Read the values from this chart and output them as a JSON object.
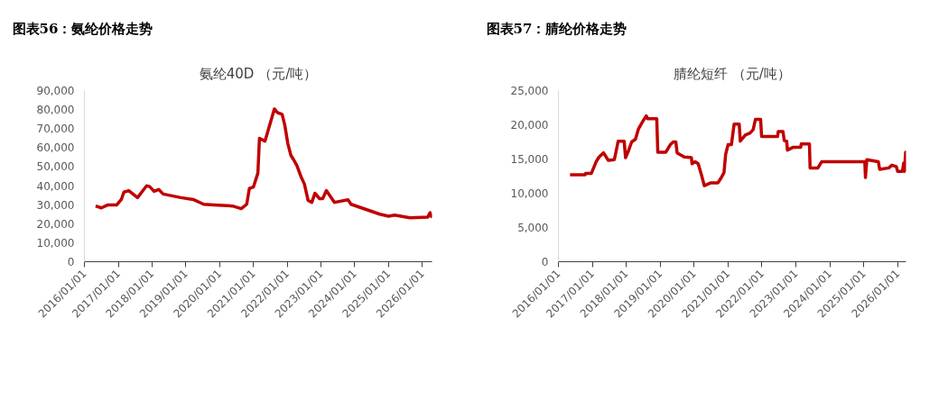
{
  "chart_data": [
    {
      "type": "line",
      "title": "图表56：氨纶价格走势",
      "subtitle": "氨纶40D （元/吨）",
      "x": [
        "2016-05-01",
        "2016-07-02",
        "2016-09-06",
        "2016-12-14",
        "2017-02-03",
        "2017-03-03",
        "2017-04-24",
        "2017-07-28",
        "2017-11-03",
        "2017-12-06",
        "2018-01-23",
        "2018-03-14",
        "2018-05-01",
        "2018-11-10",
        "2019-03-22",
        "2019-07-13",
        "2019-11-03",
        "2020-05-20",
        "2020-08-22",
        "2020-10-20",
        "2020-11-18",
        "2021-01-01",
        "2021-02-18",
        "2021-03-07",
        "2021-05-05",
        "2021-05-27",
        "2021-08-15",
        "2021-09-17",
        "2021-11-07",
        "2021-12-06",
        "2022-01-08",
        "2022-02-10",
        "2022-03-14",
        "2022-04-16",
        "2022-05-30",
        "2022-07-06",
        "2022-08-15",
        "2022-09-24",
        "2022-10-27",
        "2022-12-17",
        "2023-01-19",
        "2023-02-28",
        "2023-05-27",
        "2023-10-20",
        "2023-11-22",
        "2024-03-14",
        "2024-09-28",
        "2025-01-01",
        "2025-03-07",
        "2025-08-19",
        "2026-03-01",
        "2026-03-25",
        "2026-04-15"
      ],
      "series": [
        {
          "color": "#c00000",
          "values": [
            29300,
            28300,
            29800,
            29800,
            32700,
            36600,
            37400,
            33700,
            39900,
            39500,
            37000,
            38000,
            35600,
            33700,
            32700,
            30200,
            29800,
            29300,
            27900,
            30200,
            38500,
            39300,
            46600,
            64900,
            63400,
            66900,
            80300,
            78400,
            77500,
            71700,
            62000,
            55900,
            53400,
            50500,
            44700,
            40800,
            32200,
            31200,
            36000,
            33100,
            33100,
            37400,
            31200,
            32600,
            30200,
            28300,
            25000,
            23900,
            24500,
            23100,
            23500,
            25800,
            23100
          ]
        }
      ],
      "xlim": [
        "2016-01-01",
        "2026-04-15"
      ],
      "xticks": [
        {
          "value": "2016-01-01",
          "label": "2016/01/01"
        },
        {
          "value": "2017-01-01",
          "label": "2017/01/01"
        },
        {
          "value": "2018-01-01",
          "label": "2018/01/01"
        },
        {
          "value": "2019-01-01",
          "label": "2019/01/01"
        },
        {
          "value": "2020-01-01",
          "label": "2020/01/01"
        },
        {
          "value": "2021-01-01",
          "label": "2021/01/01"
        },
        {
          "value": "2022-01-01",
          "label": "2022/01/01"
        },
        {
          "value": "2023-01-01",
          "label": "2023/01/01"
        },
        {
          "value": "2024-01-01",
          "label": "2024/01/01"
        },
        {
          "value": "2025-01-01",
          "label": "2025/01/01"
        },
        {
          "value": "2026-01-01",
          "label": "2026/01/01"
        }
      ],
      "ylim": [
        0,
        90000
      ],
      "yticks": [
        0,
        {
          "value": 10000,
          "label": "10,000"
        },
        {
          "value": 20000,
          "label": "20,000"
        },
        {
          "value": 30000,
          "label": "30,000"
        },
        {
          "value": 40000,
          "label": "40,000"
        },
        {
          "value": 50000,
          "label": "50,000"
        },
        {
          "value": 60000,
          "label": "60,000"
        },
        {
          "value": 70000,
          "label": "70,000"
        },
        {
          "value": 80000,
          "label": "80,000"
        },
        {
          "value": 90000,
          "label": "90,000"
        }
      ],
      "grid": false
    },
    {
      "type": "line",
      "title": "图表57：腈纶价格走势",
      "subtitle": "腈纶短纤 （元/吨）",
      "x": [
        "2016-05-05",
        "2016-10-15",
        "2016-10-20",
        "2016-12-20",
        "2017-01-08",
        "2017-02-10",
        "2017-03-14",
        "2017-05-01",
        "2017-06-21",
        "2017-08-25",
        "2017-09-16",
        "2017-10-05",
        "2017-12-09",
        "2017-12-24",
        "2018-01-19",
        "2018-02-28",
        "2018-04-10",
        "2018-05-12",
        "2018-07-02",
        "2018-08-04",
        "2018-08-19",
        "2018-11-25",
        "2018-12-06",
        "2019-03-03",
        "2019-04-20",
        "2019-05-23",
        "2019-06-18",
        "2019-07-02",
        "2019-09-17",
        "2019-12-03",
        "2019-12-10",
        "2020-01-12",
        "2020-02-14",
        "2020-03-18",
        "2020-04-20",
        "2020-06-25",
        "2020-09-13",
        "2020-10-16",
        "2020-11-18",
        "2020-12-06",
        "2021-01-01",
        "2021-02-06",
        "2021-03-07",
        "2021-05-01",
        "2021-05-12",
        "2021-07-06",
        "2021-08-26",
        "2021-09-28",
        "2021-10-23",
        "2021-12-17",
        "2021-12-28",
        "2022-06-18",
        "2022-06-25",
        "2022-08-15",
        "2022-08-29",
        "2022-09-24",
        "2022-10-02",
        "2022-11-29",
        "2023-02-21",
        "2023-02-28",
        "2023-05-27",
        "2023-06-03",
        "2023-08-26",
        "2023-10-05",
        "2025-01-12",
        "2025-01-19",
        "2025-02-03",
        "2025-06-07",
        "2025-06-21",
        "2025-09-28",
        "2025-10-31",
        "2025-12-17",
        "2026-01-01",
        "2026-02-21",
        "2026-03-07",
        "2026-03-14",
        "2026-03-28",
        "2026-04-01"
      ],
      "series": [
        {
          "color": "#c00000",
          "values": [
            12700,
            12700,
            12900,
            12900,
            13500,
            14600,
            15300,
            15900,
            14800,
            14900,
            16300,
            17600,
            17600,
            15200,
            16000,
            17500,
            17900,
            19400,
            20600,
            21300,
            20900,
            20900,
            16000,
            16000,
            17100,
            17500,
            17500,
            15900,
            15300,
            15200,
            14300,
            14600,
            14300,
            12800,
            11100,
            11500,
            11500,
            12200,
            13000,
            15700,
            17100,
            17100,
            20100,
            20100,
            17600,
            18500,
            18800,
            19300,
            20800,
            20800,
            18300,
            18300,
            19000,
            19000,
            17700,
            17600,
            16300,
            16700,
            16700,
            17200,
            17200,
            13700,
            13700,
            14600,
            14600,
            12300,
            14900,
            14600,
            13500,
            13700,
            14100,
            13900,
            13200,
            13200,
            14400,
            13200,
            16000,
            13200
          ]
        }
      ],
      "xlim": [
        "2016-01-01",
        "2026-04-01"
      ],
      "xticks": [
        {
          "value": "2016-01-01",
          "label": "2016/01/01"
        },
        {
          "value": "2017-01-01",
          "label": "2017/01/01"
        },
        {
          "value": "2018-01-01",
          "label": "2018/01/01"
        },
        {
          "value": "2019-01-01",
          "label": "2019/01/01"
        },
        {
          "value": "2020-01-01",
          "label": "2020/01/01"
        },
        {
          "value": "2021-01-01",
          "label": "2021/01/01"
        },
        {
          "value": "2022-01-01",
          "label": "2022/01/01"
        },
        {
          "value": "2023-01-01",
          "label": "2023/01/01"
        },
        {
          "value": "2024-01-01",
          "label": "2024/01/01"
        },
        {
          "value": "2025-01-01",
          "label": "2025/01/01"
        },
        {
          "value": "2026-01-01",
          "label": "2026/01/01"
        }
      ],
      "ylim": [
        0,
        25000
      ],
      "yticks": [
        0,
        {
          "value": 5000,
          "label": "5,000"
        },
        {
          "value": 10000,
          "label": "10,000"
        },
        {
          "value": 15000,
          "label": "15,000"
        },
        {
          "value": 20000,
          "label": "20,000"
        },
        {
          "value": 25000,
          "label": "25,000"
        }
      ],
      "grid": false
    }
  ]
}
